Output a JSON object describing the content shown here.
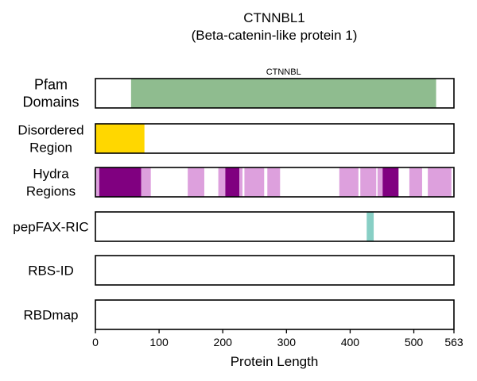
{
  "chart_data": {
    "type": "bar",
    "title": "CTNNBL1",
    "subtitle": "(Beta-catenin-like protein 1)",
    "xlabel": "Protein Length",
    "xlim": [
      0,
      563
    ],
    "xticks": [
      0,
      100,
      200,
      300,
      400,
      500,
      563
    ],
    "grid": "vertical-dashed",
    "tracks": [
      {
        "label_lines": [
          "Pfam",
          "Domains"
        ],
        "segments": [
          {
            "start": 56,
            "end": 535,
            "color": "#8fbc8f",
            "label": "CTNNBL"
          }
        ]
      },
      {
        "label_lines": [
          "Disordered",
          "Region"
        ],
        "segments": [
          {
            "start": 0,
            "end": 77,
            "color": "#ffd700"
          }
        ]
      },
      {
        "label_lines": [
          "Hydra",
          "Regions"
        ],
        "segments": [
          {
            "start": 0,
            "end": 6,
            "color": "#dda0dd"
          },
          {
            "start": 6,
            "end": 72,
            "color": "#800080"
          },
          {
            "start": 72,
            "end": 87,
            "color": "#dda0dd"
          },
          {
            "start": 145,
            "end": 171,
            "color": "#dda0dd"
          },
          {
            "start": 193,
            "end": 204,
            "color": "#dda0dd"
          },
          {
            "start": 204,
            "end": 226,
            "color": "#800080"
          },
          {
            "start": 226,
            "end": 231,
            "color": "#dda0dd"
          },
          {
            "start": 234,
            "end": 265,
            "color": "#dda0dd"
          },
          {
            "start": 270,
            "end": 290,
            "color": "#dda0dd"
          },
          {
            "start": 383,
            "end": 413,
            "color": "#dda0dd"
          },
          {
            "start": 416,
            "end": 441,
            "color": "#dda0dd"
          },
          {
            "start": 443,
            "end": 451,
            "color": "#dda0dd"
          },
          {
            "start": 451,
            "end": 476,
            "color": "#800080"
          },
          {
            "start": 493,
            "end": 513,
            "color": "#dda0dd"
          },
          {
            "start": 522,
            "end": 559,
            "color": "#dda0dd"
          }
        ]
      },
      {
        "label_lines": [
          "pepFAX-RIC"
        ],
        "segments": [
          {
            "start": 426,
            "end": 437,
            "color": "#88cfc5"
          }
        ]
      },
      {
        "label_lines": [
          "RBS-ID"
        ],
        "segments": []
      },
      {
        "label_lines": [
          "RBDmap"
        ],
        "segments": []
      }
    ]
  }
}
